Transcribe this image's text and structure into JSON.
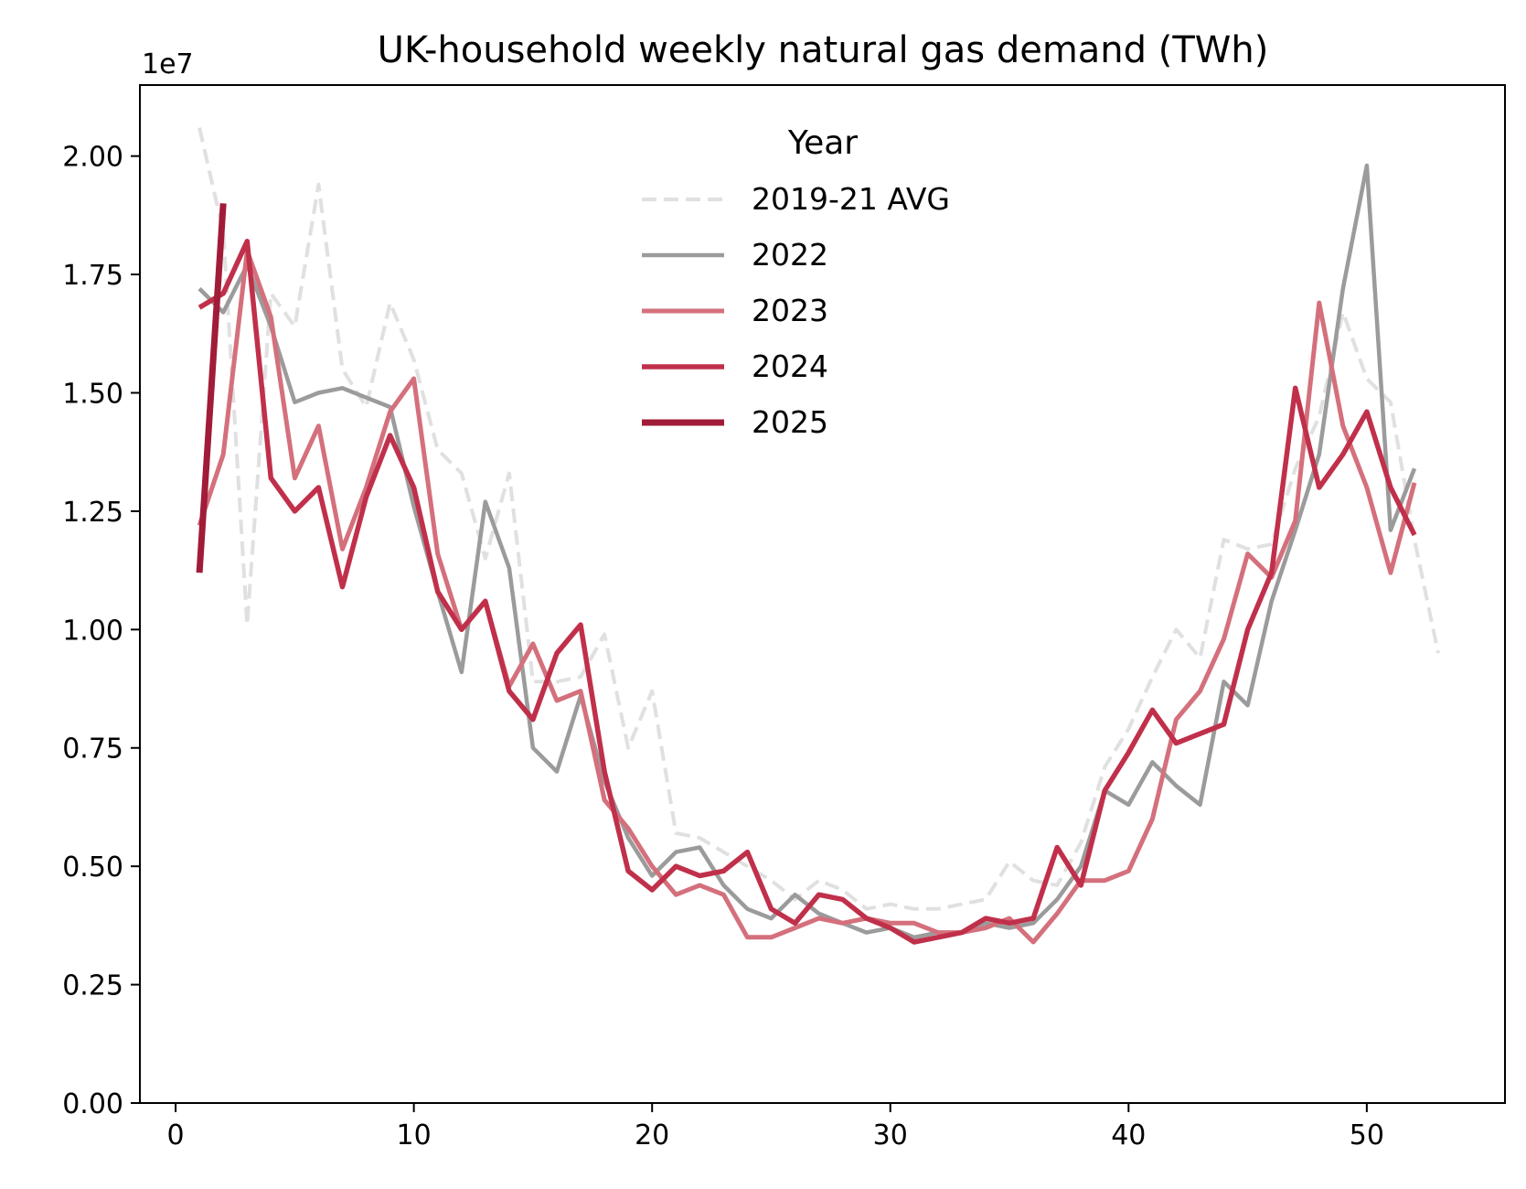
{
  "chart_data": {
    "type": "line",
    "title": "UK-household weekly natural gas demand (TWh)",
    "xlabel": "",
    "ylabel": "",
    "offset_label": "1e7",
    "xlim": [
      -1.5,
      55.8
    ],
    "ylim": [
      0,
      2.15
    ],
    "xticks": [
      0,
      10,
      20,
      30,
      40,
      50
    ],
    "yticks": [
      0.0,
      0.25,
      0.5,
      0.75,
      1.0,
      1.25,
      1.5,
      1.75,
      2.0
    ],
    "ytick_labels": [
      "0.00",
      "0.25",
      "0.50",
      "0.75",
      "1.00",
      "1.25",
      "1.50",
      "1.75",
      "2.00"
    ],
    "legend": {
      "title": "Year",
      "position": "top-center"
    },
    "series": [
      {
        "name": "2019-21 AVG",
        "color": "#e0e0e0",
        "style": "dashed",
        "x": [
          1,
          2,
          3,
          4,
          5,
          6,
          7,
          8,
          9,
          10,
          11,
          12,
          13,
          14,
          15,
          16,
          17,
          18,
          19,
          20,
          21,
          22,
          23,
          24,
          25,
          26,
          27,
          28,
          29,
          30,
          31,
          32,
          33,
          34,
          35,
          36,
          37,
          38,
          39,
          40,
          41,
          42,
          43,
          44,
          45,
          46,
          47,
          48,
          49,
          50,
          51,
          52,
          53
        ],
        "values": [
          2.06,
          1.84,
          1.01,
          1.71,
          1.64,
          1.94,
          1.55,
          1.47,
          1.69,
          1.57,
          1.38,
          1.33,
          1.15,
          1.33,
          0.89,
          0.89,
          0.9,
          0.99,
          0.75,
          0.87,
          0.57,
          0.56,
          0.53,
          0.5,
          0.47,
          0.43,
          0.47,
          0.45,
          0.41,
          0.42,
          0.41,
          0.41,
          0.42,
          0.43,
          0.51,
          0.47,
          0.46,
          0.55,
          0.71,
          0.79,
          0.9,
          1.0,
          0.94,
          1.19,
          1.17,
          1.18,
          1.34,
          1.45,
          1.67,
          1.53,
          1.48,
          1.19,
          0.95
        ]
      },
      {
        "name": "2022",
        "color": "#9b9b9b",
        "style": "solid",
        "x": [
          1,
          2,
          3,
          4,
          5,
          6,
          7,
          8,
          9,
          10,
          11,
          12,
          13,
          14,
          15,
          16,
          17,
          18,
          19,
          20,
          21,
          22,
          23,
          24,
          25,
          26,
          27,
          28,
          29,
          30,
          31,
          32,
          33,
          34,
          35,
          36,
          37,
          38,
          39,
          40,
          41,
          42,
          43,
          44,
          45,
          46,
          47,
          48,
          49,
          50,
          51,
          52
        ],
        "values": [
          1.72,
          1.67,
          1.77,
          1.64,
          1.48,
          1.5,
          1.51,
          1.49,
          1.47,
          1.26,
          1.08,
          0.91,
          1.27,
          1.13,
          0.75,
          0.7,
          0.86,
          0.68,
          0.56,
          0.48,
          0.53,
          0.54,
          0.46,
          0.41,
          0.39,
          0.44,
          0.4,
          0.38,
          0.36,
          0.37,
          0.35,
          0.36,
          0.36,
          0.38,
          0.37,
          0.38,
          0.43,
          0.5,
          0.66,
          0.63,
          0.72,
          0.67,
          0.63,
          0.89,
          0.84,
          1.06,
          1.21,
          1.37,
          1.72,
          1.98,
          1.21,
          1.34
        ]
      },
      {
        "name": "2023",
        "color": "#d4707c",
        "style": "solid",
        "x": [
          1,
          2,
          3,
          4,
          5,
          6,
          7,
          8,
          9,
          10,
          11,
          12,
          13,
          14,
          15,
          16,
          17,
          18,
          19,
          20,
          21,
          22,
          23,
          24,
          25,
          26,
          27,
          28,
          29,
          30,
          31,
          32,
          33,
          34,
          35,
          36,
          37,
          38,
          39,
          40,
          41,
          42,
          43,
          44,
          45,
          46,
          47,
          48,
          49,
          50,
          51,
          52
        ],
        "values": [
          1.22,
          1.37,
          1.8,
          1.66,
          1.32,
          1.43,
          1.17,
          1.3,
          1.46,
          1.53,
          1.16,
          1.0,
          1.06,
          0.88,
          0.97,
          0.85,
          0.87,
          0.64,
          0.58,
          0.5,
          0.44,
          0.46,
          0.44,
          0.35,
          0.35,
          0.37,
          0.39,
          0.38,
          0.39,
          0.38,
          0.38,
          0.36,
          0.36,
          0.37,
          0.39,
          0.34,
          0.4,
          0.47,
          0.47,
          0.49,
          0.6,
          0.81,
          0.87,
          0.98,
          1.16,
          1.11,
          1.23,
          1.69,
          1.43,
          1.3,
          1.12,
          1.31
        ]
      },
      {
        "name": "2024",
        "color": "#c0304a",
        "style": "solid",
        "x": [
          1,
          2,
          3,
          4,
          5,
          6,
          7,
          8,
          9,
          10,
          11,
          12,
          13,
          14,
          15,
          16,
          17,
          18,
          19,
          20,
          21,
          22,
          23,
          24,
          25,
          26,
          27,
          28,
          29,
          30,
          31,
          32,
          33,
          34,
          35,
          36,
          37,
          38,
          39,
          40,
          41,
          42,
          43,
          44,
          45,
          46,
          47,
          48,
          49,
          50,
          51,
          52
        ],
        "values": [
          1.68,
          1.71,
          1.82,
          1.32,
          1.25,
          1.3,
          1.09,
          1.28,
          1.41,
          1.3,
          1.08,
          1.0,
          1.06,
          0.87,
          0.81,
          0.95,
          1.01,
          0.7,
          0.49,
          0.45,
          0.5,
          0.48,
          0.49,
          0.53,
          0.41,
          0.38,
          0.44,
          0.43,
          0.39,
          0.37,
          0.34,
          0.35,
          0.36,
          0.39,
          0.38,
          0.39,
          0.54,
          0.46,
          0.66,
          0.74,
          0.83,
          0.76,
          0.78,
          0.8,
          1.0,
          1.12,
          1.51,
          1.3,
          1.37,
          1.46,
          1.3,
          1.2
        ]
      },
      {
        "name": "2025",
        "color": "#a01c38",
        "style": "solid",
        "x": [
          1,
          2
        ],
        "values": [
          1.12,
          1.9
        ]
      }
    ]
  }
}
